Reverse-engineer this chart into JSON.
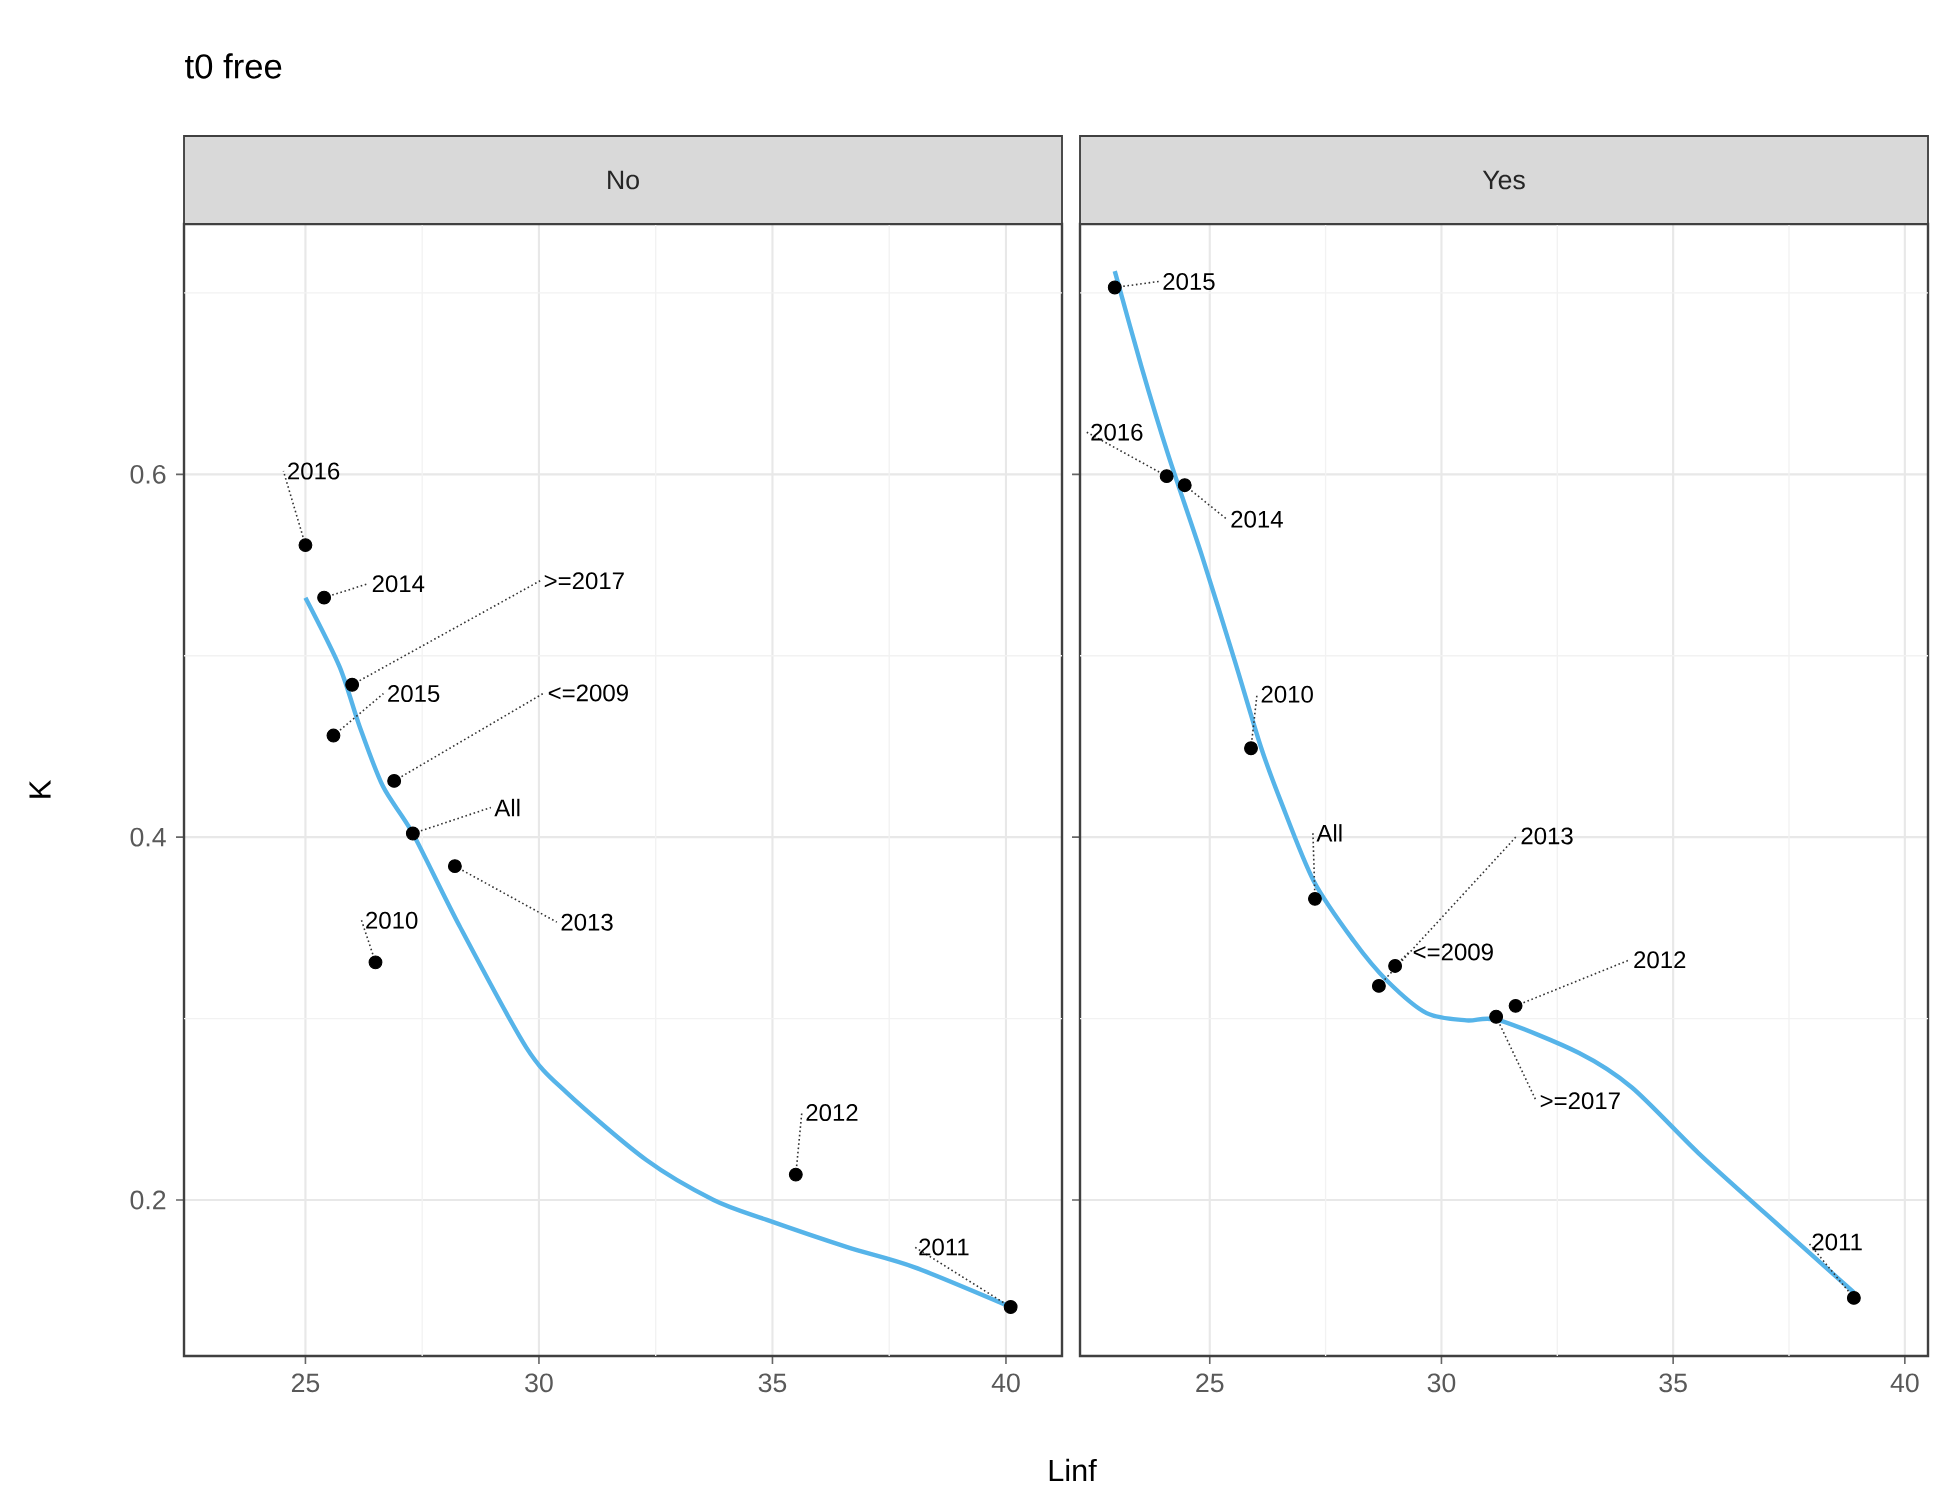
{
  "chart_data": [
    {
      "type": "scatter",
      "title": "t0 free",
      "subtitle": "No",
      "xlabel": "Linf",
      "ylabel": "K",
      "xlim": [
        22.4,
        41.2
      ],
      "ylim": [
        0.114,
        0.738
      ],
      "xticks": [
        25,
        {
          "value": 27.5,
          "label": null
        },
        30,
        {
          "value": 32.5,
          "label": null
        },
        35,
        {
          "value": 37.5,
          "label": null
        },
        40
      ],
      "yticks": [
        0.2,
        {
          "value": 0.3,
          "label": null
        },
        0.4,
        {
          "value": 0.5,
          "label": null
        },
        0.6,
        {
          "value": 0.7,
          "label": null
        }
      ],
      "grid": true,
      "line_style": "solid",
      "marker": "circle",
      "series": [
        {
          "color": "#000000",
          "x": [
            25.0,
            25.4,
            26.0,
            25.6,
            26.9,
            27.3,
            28.2,
            26.5,
            35.5,
            40.1
          ],
          "values": [
            0.561,
            0.532,
            0.484,
            0.456,
            0.431,
            0.402,
            0.384,
            0.331,
            0.214,
            0.141
          ]
        },
        {
          "type": "line",
          "marker": "none",
          "color": "#56b4e9",
          "x": [
            25.0,
            25.73,
            26.16,
            26.66,
            27.3,
            28.3,
            29.73,
            30.6,
            32.3,
            33.74,
            34.88,
            36.6,
            38.03,
            40.1
          ],
          "values": [
            0.532,
            0.494,
            0.461,
            0.428,
            0.402,
            0.351,
            0.284,
            0.259,
            0.222,
            0.2,
            0.189,
            0.174,
            0.163,
            0.141
          ]
        }
      ],
      "annotations": [
        {
          "text": "2016",
          "x": 25.0,
          "y": 0.561
        },
        {
          "text": "2014",
          "x": 25.4,
          "y": 0.532
        },
        {
          "text": ">=2017",
          "x": 26.0,
          "y": 0.484
        },
        {
          "text": "2015",
          "x": 25.6,
          "y": 0.456
        },
        {
          "text": "<=2009",
          "x": 26.9,
          "y": 0.431
        },
        {
          "text": "All",
          "x": 27.3,
          "y": 0.402
        },
        {
          "text": "2013",
          "x": 28.2,
          "y": 0.384
        },
        {
          "text": "2010",
          "x": 26.5,
          "y": 0.331
        },
        {
          "text": "2012",
          "x": 35.5,
          "y": 0.214
        },
        {
          "text": "2011",
          "x": 40.1,
          "y": 0.141
        }
      ]
    },
    {
      "type": "scatter",
      "subtitle": "Yes",
      "xlim": [
        22.2,
        40.5
      ],
      "ylim": [
        0.114,
        0.738
      ],
      "xticks": [
        25,
        {
          "value": 27.5,
          "label": null
        },
        30,
        {
          "value": 32.5,
          "label": null
        },
        35,
        {
          "value": 37.5,
          "label": null
        },
        40
      ],
      "yticks": [
        0.2,
        {
          "value": 0.3,
          "label": null
        },
        0.4,
        {
          "value": 0.5,
          "label": null
        },
        0.6,
        {
          "value": 0.7,
          "label": null
        }
      ],
      "tick_labels": "x",
      "grid": true,
      "line_style": "solid",
      "marker": "circle",
      "series": [
        {
          "color": "#000000",
          "x": [
            22.95,
            24.07,
            24.46,
            25.89,
            27.27,
            28.65,
            29.0,
            31.6,
            31.18,
            38.9
          ],
          "values": [
            0.703,
            0.599,
            0.594,
            0.449,
            0.366,
            0.318,
            0.329,
            0.307,
            0.301,
            0.146
          ]
        },
        {
          "type": "line",
          "marker": "none",
          "color": "#56b4e9",
          "x": [
            22.95,
            23.53,
            24.1,
            24.82,
            25.53,
            26.1,
            26.53,
            27.24,
            28.1,
            28.82,
            29.68,
            30.54,
            31.25,
            32.97,
            34.11,
            35.54,
            36.97,
            38.9
          ],
          "values": [
            0.712,
            0.659,
            0.611,
            0.556,
            0.498,
            0.45,
            0.42,
            0.376,
            0.343,
            0.321,
            0.303,
            0.299,
            0.299,
            0.281,
            0.262,
            0.226,
            0.193,
            0.149
          ]
        }
      ],
      "annotations": [
        {
          "text": "2015",
          "x": 22.95,
          "y": 0.703
        },
        {
          "text": "2016",
          "x": 24.07,
          "y": 0.599
        },
        {
          "text": "2014",
          "x": 24.46,
          "y": 0.594
        },
        {
          "text": "2010",
          "x": 25.89,
          "y": 0.449
        },
        {
          "text": "All",
          "x": 27.27,
          "y": 0.366
        },
        {
          "text": "2013",
          "x": 28.65,
          "y": 0.318
        },
        {
          "text": "<=2009",
          "x": 29.0,
          "y": 0.329
        },
        {
          "text": "2012",
          "x": 31.6,
          "y": 0.307
        },
        {
          "text": ">=2017",
          "x": 31.18,
          "y": 0.301
        },
        {
          "text": "2011",
          "x": 38.9,
          "y": 0.146
        }
      ]
    }
  ]
}
